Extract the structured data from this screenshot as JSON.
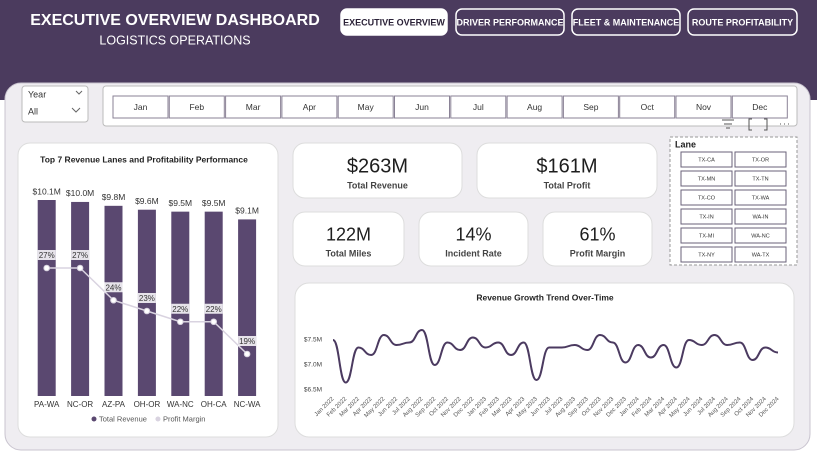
{
  "header": {
    "title": "EXECUTIVE OVERVIEW DASHBOARD",
    "subtitle": "LOGISTICS OPERATIONS"
  },
  "nav": [
    "EXECUTIVE OVERVIEW",
    "DRIVER PERFORMANCE",
    "FLEET & MAINTENANCE",
    "ROUTE PROFITABILITY"
  ],
  "filters": {
    "year_label": "Year",
    "year_value": "All",
    "months": [
      "Jan",
      "Feb",
      "Mar",
      "Apr",
      "May",
      "Jun",
      "Jul",
      "Aug",
      "Sep",
      "Oct",
      "Nov",
      "Dec"
    ],
    "lane_label": "Lane",
    "lanes": [
      "TX-CA",
      "TX-OR",
      "TX-MN",
      "TX-TN",
      "TX-CO",
      "TX-WA",
      "TX-IN",
      "WA-IN",
      "TX-MI",
      "WA-NC",
      "TX-NY",
      "WA-TX"
    ]
  },
  "kpis": [
    {
      "value": "$263M",
      "label": "Total Revenue"
    },
    {
      "value": "$161M",
      "label": "Total Profit"
    },
    {
      "value": "122M",
      "label": "Total Miles"
    },
    {
      "value": "14%",
      "label": "Incident Rate"
    },
    {
      "value": "61%",
      "label": "Profit Margin"
    }
  ],
  "chart_data": [
    {
      "type": "combo",
      "title": "Top 7 Revenue Lanes and Profitability Performance",
      "categories": [
        "PA-WA",
        "NC-OR",
        "AZ-PA",
        "OH-OR",
        "WA-NC",
        "OH-CA",
        "NC-WA"
      ],
      "series": [
        {
          "name": "Total Revenue",
          "color": "#5a4870",
          "values": [
            10.1,
            10.0,
            9.8,
            9.6,
            9.5,
            9.5,
            9.1
          ],
          "value_labels": [
            "$10.1M",
            "$10.0M",
            "$9.8M",
            "$9.6M",
            "$9.5M",
            "$9.5M",
            "$9.1M"
          ]
        },
        {
          "name": "Profit Margin",
          "color": "#d9d3e0",
          "axis": "y2",
          "values": [
            27,
            27,
            24,
            23,
            22,
            22,
            19
          ],
          "value_labels": [
            "27%",
            "27%",
            "24%",
            "23%",
            "22%",
            "22%",
            "19%"
          ]
        }
      ]
    },
    {
      "type": "line",
      "title": "Revenue Growth Trend Over-Time",
      "color": "#4b3a60",
      "x": [
        "Jan 2022",
        "Feb 2022",
        "Mar 2022",
        "Apr 2022",
        "May 2022",
        "Jun 2022",
        "Jul 2022",
        "Aug 2022",
        "Sep 2022",
        "Oct 2022",
        "Nov 2022",
        "Dec 2022",
        "Jan 2023",
        "Feb 2023",
        "Mar 2023",
        "Apr 2023",
        "May 2023",
        "Jun 2023",
        "Jul 2023",
        "Aug 2023",
        "Sep 2023",
        "Oct 2023",
        "Nov 2023",
        "Dec 2023",
        "Jan 2024",
        "Feb 2024",
        "Mar 2024",
        "Apr 2024",
        "May 2024",
        "Jun 2024",
        "Jul 2024",
        "Aug 2024",
        "Sep 2024",
        "Oct 2024",
        "Nov 2024",
        "Dec 2024"
      ],
      "values": [
        7.5,
        6.65,
        7.35,
        7.2,
        7.6,
        7.4,
        7.45,
        7.7,
        7.0,
        7.45,
        7.3,
        7.55,
        7.35,
        7.45,
        7.2,
        7.45,
        6.7,
        7.35,
        7.35,
        7.4,
        7.3,
        7.6,
        7.45,
        7.05,
        7.4,
        7.15,
        7.4,
        6.95,
        7.5,
        7.4,
        7.6,
        7.4,
        7.45,
        7.1,
        7.35,
        7.25
      ],
      "ylim": [
        6.5,
        7.8
      ],
      "yticks": [
        {
          "value": 6.5,
          "label": "$6.5M"
        },
        {
          "value": 7.0,
          "label": "$7.0M"
        },
        {
          "value": 7.5,
          "label": "$7.5M"
        }
      ]
    }
  ]
}
